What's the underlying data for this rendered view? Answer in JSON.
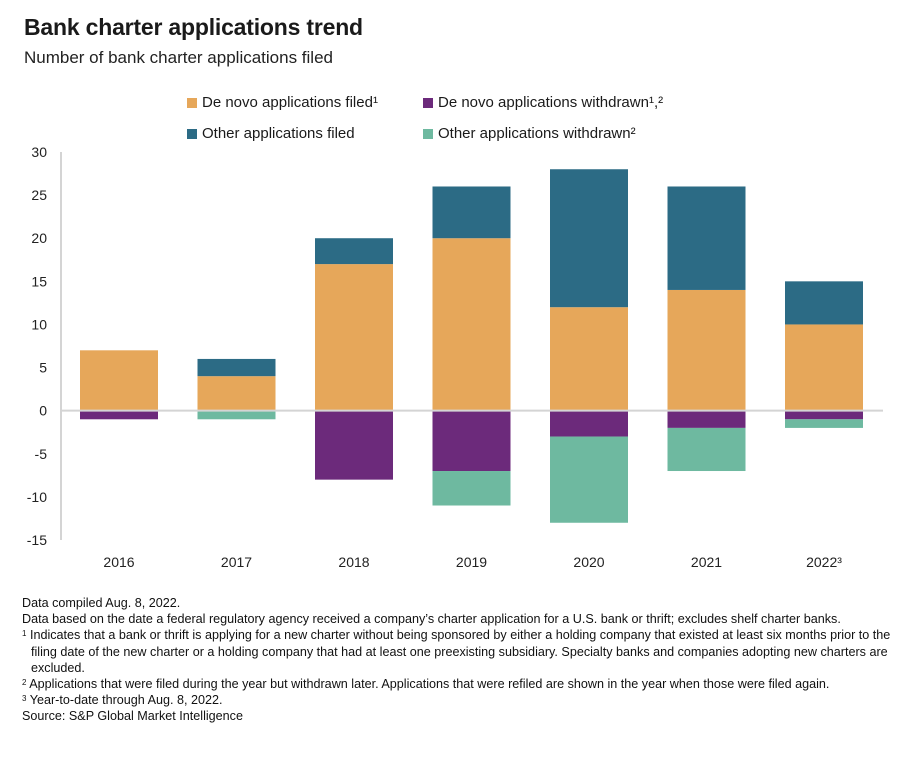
{
  "chart_data": {
    "type": "bar",
    "stacked": true,
    "title": "Bank charter applications trend",
    "subtitle": "Number of bank charter applications filed",
    "xlabel": "",
    "ylabel": "",
    "categories": [
      "2016",
      "2017",
      "2018",
      "2019",
      "2020",
      "2021",
      "2022³"
    ],
    "ylim": [
      -15,
      30
    ],
    "yticks": [
      30,
      25,
      20,
      15,
      10,
      5,
      0,
      -5,
      -10,
      -15
    ],
    "grid": false,
    "legend_position": "top",
    "series": [
      {
        "name": "De novo applications filed¹",
        "color": "#E6A75A",
        "values": [
          7,
          4,
          17,
          20,
          12,
          14,
          10
        ]
      },
      {
        "name": "Other applications filed",
        "color": "#2C6B85",
        "values": [
          0,
          2,
          3,
          6,
          16,
          12,
          5
        ]
      },
      {
        "name": "De novo applications withdrawn¹,²",
        "color": "#6C2A7B",
        "values": [
          -1,
          0,
          -8,
          -7,
          -3,
          -2,
          -1
        ]
      },
      {
        "name": "Other applications withdrawn²",
        "color": "#6EB9A0",
        "values": [
          0,
          -1,
          0,
          -4,
          -10,
          -5,
          -1
        ]
      }
    ]
  },
  "legend": [
    {
      "label": "De novo applications filed¹",
      "color": "#E6A75A"
    },
    {
      "label": "De novo applications withdrawn¹,²",
      "color": "#6C2A7B"
    },
    {
      "label": "Other applications filed",
      "color": "#2C6B85"
    },
    {
      "label": "Other applications withdrawn²",
      "color": "#6EB9A0"
    }
  ],
  "notes": {
    "compiled": "Data compiled Aug. 8, 2022.",
    "basis": "Data based on the date a federal regulatory agency received a company’s charter application for a U.S. bank or thrift; excludes shelf charter banks.",
    "fn1_mark": "1",
    "fn1": "Indicates that a bank or thrift is applying for a new charter without being sponsored by either a holding company that existed at least six months prior to the filing date of the new charter or a holding company that had at least one preexisting subsidiary. Specialty banks and companies adopting new charters are excluded.",
    "fn2_mark": "2",
    "fn2": "Applications that were filed during the year but withdrawn later. Applications that were refiled are shown in the year when those were filed again.",
    "fn3_mark": "3",
    "fn3": "Year-to-date through Aug. 8, 2022.",
    "source": "Source: S&P Global Market Intelligence"
  }
}
